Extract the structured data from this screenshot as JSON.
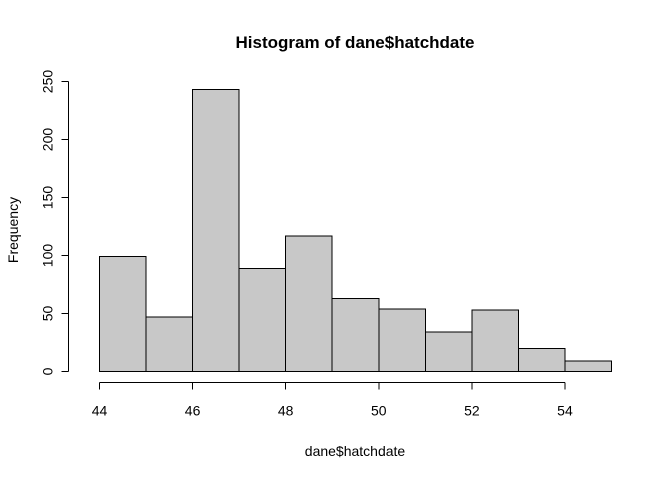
{
  "chart_data": {
    "type": "bar",
    "title": "Histogram of dane$hatchdate",
    "xlabel": "dane$hatchdate",
    "ylabel": "Frequency",
    "bin_edges": [
      44,
      45,
      46,
      47,
      48,
      49,
      50,
      51,
      52,
      53,
      54,
      55
    ],
    "values": [
      99,
      47,
      243,
      89,
      117,
      63,
      54,
      34,
      53,
      20,
      9
    ],
    "xlim": [
      44,
      55
    ],
    "ylim": [
      0,
      250
    ],
    "x_ticks": [
      44,
      46,
      48,
      50,
      52,
      54
    ],
    "y_ticks": [
      0,
      50,
      100,
      150,
      200,
      250
    ],
    "colors": {
      "bar_fill": "#c8c8c8",
      "bar_stroke": "#000000",
      "background": "#ffffff"
    },
    "grid": false,
    "legend": "none"
  }
}
